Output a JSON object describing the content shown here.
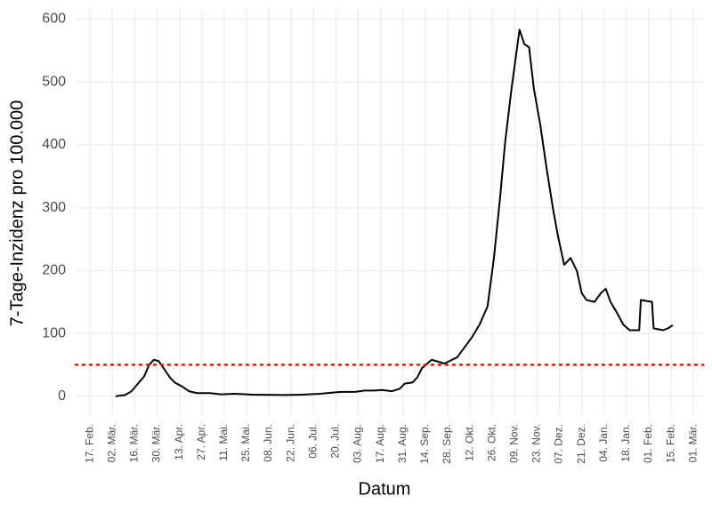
{
  "chart_data": {
    "type": "line",
    "x_label": "Datum",
    "y_label": "7-Tage-Inzidenz pro 100.000",
    "xlim": [
      -9,
      384
    ],
    "ylim": [
      -30,
      616
    ],
    "xticks": [
      {
        "value": 0,
        "label": "17. Feb."
      },
      {
        "value": 14,
        "label": "02. Mär."
      },
      {
        "value": 28,
        "label": "16. Mär."
      },
      {
        "value": 42,
        "label": "30. Mär."
      },
      {
        "value": 56,
        "label": "13. Apr."
      },
      {
        "value": 70,
        "label": "27. Apr."
      },
      {
        "value": 84,
        "label": "11. Mai."
      },
      {
        "value": 98,
        "label": "25. Mai."
      },
      {
        "value": 112,
        "label": "08. Jun."
      },
      {
        "value": 126,
        "label": "22. Jun."
      },
      {
        "value": 140,
        "label": "06. Jul."
      },
      {
        "value": 154,
        "label": "20. Jul."
      },
      {
        "value": 168,
        "label": "03. Aug."
      },
      {
        "value": 182,
        "label": "17. Aug."
      },
      {
        "value": 196,
        "label": "31. Aug."
      },
      {
        "value": 210,
        "label": "14. Sep."
      },
      {
        "value": 224,
        "label": "28. Sep."
      },
      {
        "value": 238,
        "label": "12. Okt."
      },
      {
        "value": 252,
        "label": "26. Okt."
      },
      {
        "value": 266,
        "label": "09. Nov."
      },
      {
        "value": 280,
        "label": "23. Nov."
      },
      {
        "value": 294,
        "label": "07. Dez."
      },
      {
        "value": 308,
        "label": "21. Dez."
      },
      {
        "value": 322,
        "label": "04. Jan."
      },
      {
        "value": 336,
        "label": "18. Jan."
      },
      {
        "value": 350,
        "label": "01. Feb."
      },
      {
        "value": 364,
        "label": "15. Feb."
      },
      {
        "value": 378,
        "label": "01. Mär."
      }
    ],
    "yticks": [
      0,
      100,
      200,
      300,
      400,
      500,
      600
    ],
    "grid": true,
    "reference_line": {
      "value": 50,
      "color": "#ff0000"
    },
    "series": [
      {
        "color": "#000000",
        "x": [
          16,
          22,
          26,
          30,
          34,
          37,
          40,
          43,
          46,
          50,
          53,
          58,
          62,
          67,
          75,
          82,
          91,
          102,
          122,
          133,
          144,
          153,
          158,
          166,
          172,
          178,
          183,
          189,
          194,
          197,
          202,
          205,
          208,
          214,
          222,
          230,
          239,
          244,
          249,
          253,
          257,
          260,
          264,
          267,
          269,
          272,
          275,
          278,
          282,
          286,
          290,
          293,
          297,
          301,
          305,
          308,
          311,
          316,
          320,
          323,
          326,
          330,
          334,
          338,
          344,
          345,
          352,
          353,
          359,
          362,
          365
        ],
        "values": [
          0,
          2,
          8,
          20,
          32,
          50,
          58,
          56,
          45,
          30,
          22,
          15,
          8,
          5,
          5,
          3,
          4,
          2.5,
          2,
          2.5,
          4,
          6,
          7,
          7,
          9,
          9,
          10,
          8,
          12,
          20,
          22,
          30,
          45,
          58,
          52,
          62,
          93,
          114,
          143,
          220,
          320,
          404,
          489,
          545,
          583,
          560,
          555,
          489,
          432,
          362,
          298,
          256,
          209,
          220,
          199,
          164,
          153,
          150,
          164,
          171,
          150,
          133,
          114,
          105,
          105,
          153,
          150,
          108,
          105,
          108,
          113
        ]
      }
    ]
  }
}
